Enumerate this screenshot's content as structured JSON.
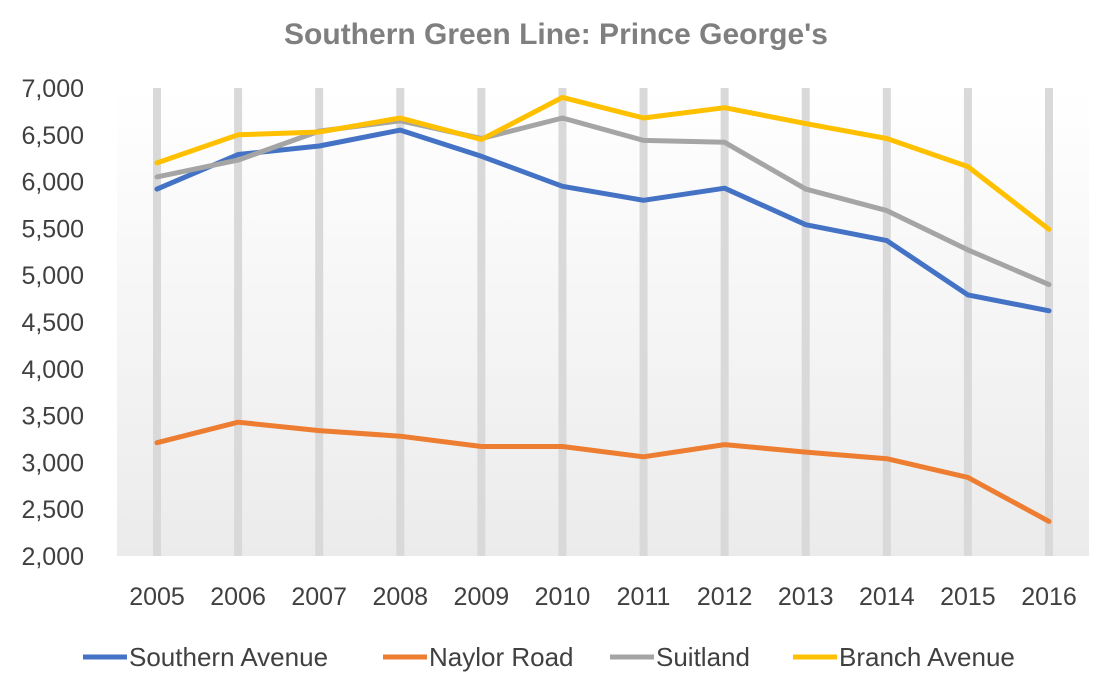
{
  "chart_data": {
    "type": "line",
    "title": "Southern Green Line: Prince George's",
    "xlabel": "",
    "ylabel": "",
    "x": [
      "2005",
      "2006",
      "2007",
      "2008",
      "2009",
      "2010",
      "2011",
      "2012",
      "2013",
      "2014",
      "2015",
      "2016"
    ],
    "ylim": [
      2000,
      7000
    ],
    "yticks": [
      "2,000",
      "2,500",
      "3,000",
      "3,500",
      "4,000",
      "4,500",
      "5,000",
      "5,500",
      "6,000",
      "6,500",
      "7,000"
    ],
    "ytick_values": [
      2000,
      2500,
      3000,
      3500,
      4000,
      4500,
      5000,
      5500,
      6000,
      6500,
      7000
    ],
    "grid": "vertical",
    "legend": "bottom",
    "series": [
      {
        "name": "Southern Avenue",
        "color": "#4472c4",
        "values": [
          5920,
          6290,
          6380,
          6550,
          6270,
          5950,
          5800,
          5930,
          5540,
          5370,
          4790,
          4620
        ]
      },
      {
        "name": "Naylor Road",
        "color": "#ed7d31",
        "values": [
          3210,
          3430,
          3340,
          3280,
          3170,
          3170,
          3060,
          3190,
          3110,
          3040,
          2840,
          2370
        ]
      },
      {
        "name": "Suitland",
        "color": "#a5a5a5",
        "values": [
          6050,
          6230,
          6540,
          6650,
          6460,
          6680,
          6440,
          6420,
          5920,
          5690,
          5270,
          4900
        ]
      },
      {
        "name": "Branch Avenue",
        "color": "#ffc000",
        "values": [
          6200,
          6500,
          6530,
          6680,
          6450,
          6900,
          6680,
          6790,
          6620,
          6460,
          6160,
          5490
        ]
      }
    ]
  }
}
